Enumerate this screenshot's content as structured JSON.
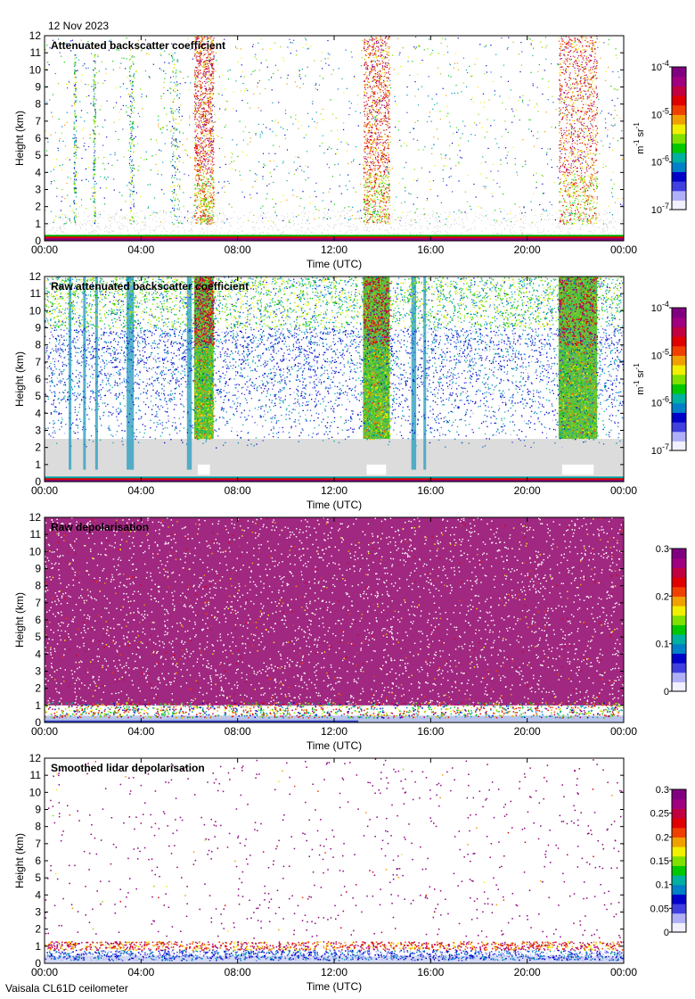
{
  "header": {
    "date": "12 Nov 2023",
    "instrument": "Vaisala CL61D ceilometer"
  },
  "colormap": [
    "#f0f0ff",
    "#b0b0f8",
    "#4040e0",
    "#0000c8",
    "#0080c8",
    "#00b0a0",
    "#00c800",
    "#80e000",
    "#f0f000",
    "#f0a000",
    "#f04000",
    "#e00000",
    "#c00040",
    "#a00080",
    "#800080"
  ],
  "chart_data": [
    {
      "type": "heatmap",
      "title": "Attenuated backscatter coefficient",
      "xlabel": "Time (UTC)",
      "ylabel": "Height (km)",
      "x_ticks": [
        "00:00",
        "04:00",
        "08:00",
        "12:00",
        "16:00",
        "20:00",
        "00:00"
      ],
      "y_ticks": [
        "0",
        "1",
        "2",
        "3",
        "4",
        "5",
        "6",
        "7",
        "8",
        "9",
        "10",
        "11",
        "12"
      ],
      "ylim": [
        0,
        12
      ],
      "xlim_hours": [
        0,
        24
      ],
      "colorbar": {
        "scale": "log",
        "range": [
          1e-07,
          0.0001
        ],
        "tick_labels": [
          {
            "base": "10",
            "exp": "-7"
          },
          {
            "base": "10",
            "exp": "-6"
          },
          {
            "base": "10",
            "exp": "-5"
          },
          {
            "base": "10",
            "exp": "-4"
          }
        ],
        "unit": {
          "m": "m",
          "m_exp": "-1",
          "sr": "sr",
          "sr_exp": "-1"
        }
      },
      "features": {
        "precipitation_shafts_hours": [
          [
            6.2,
            7.0
          ],
          [
            13.2,
            14.3
          ],
          [
            21.3,
            22.9
          ]
        ],
        "sparse_showers_hours": [
          [
            1.2,
            1.3
          ],
          [
            2.0,
            2.1
          ],
          [
            3.5,
            3.7
          ],
          [
            5.2,
            5.6
          ]
        ],
        "surface_layer_top_km": 0.35
      }
    },
    {
      "type": "heatmap",
      "title": "Raw attenuated backscatter coefficient",
      "xlabel": "Time (UTC)",
      "ylabel": "Height (km)",
      "x_ticks": [
        "00:00",
        "04:00",
        "08:00",
        "12:00",
        "16:00",
        "20:00",
        "00:00"
      ],
      "y_ticks": [
        "0",
        "1",
        "2",
        "3",
        "4",
        "5",
        "6",
        "7",
        "8",
        "9",
        "10",
        "11",
        "12"
      ],
      "ylim": [
        0,
        12
      ],
      "xlim_hours": [
        0,
        24
      ],
      "colorbar": {
        "scale": "log",
        "range": [
          1e-07,
          0.0001
        ],
        "tick_labels": [
          {
            "base": "10",
            "exp": "-7"
          },
          {
            "base": "10",
            "exp": "-6"
          },
          {
            "base": "10",
            "exp": "-5"
          },
          {
            "base": "10",
            "exp": "-4"
          }
        ],
        "unit": {
          "m": "m",
          "m_exp": "-1",
          "sr": "sr",
          "sr_exp": "-1"
        }
      },
      "features": {
        "precipitation_shafts_hours": [
          [
            6.2,
            7.0
          ],
          [
            13.2,
            14.3
          ],
          [
            21.3,
            22.9
          ]
        ],
        "sparse_showers_hours": [
          [
            1.0,
            1.1
          ],
          [
            1.6,
            1.7
          ],
          [
            2.1,
            2.2
          ],
          [
            3.4,
            3.7
          ],
          [
            5.9,
            6.1
          ],
          [
            15.2,
            15.4
          ],
          [
            15.7,
            15.8
          ]
        ],
        "noise_floor_km": 2.5
      }
    },
    {
      "type": "heatmap",
      "title": "Raw depolarisation",
      "xlabel": "Time (UTC)",
      "ylabel": "Height (km)",
      "x_ticks": [
        "00:00",
        "04:00",
        "08:00",
        "12:00",
        "16:00",
        "20:00",
        "00:00"
      ],
      "y_ticks": [
        "0",
        "1",
        "2",
        "3",
        "4",
        "5",
        "6",
        "7",
        "8",
        "9",
        "10",
        "11",
        "12"
      ],
      "ylim": [
        0,
        12
      ],
      "xlim_hours": [
        0,
        24
      ],
      "colorbar": {
        "scale": "linear",
        "range": [
          0,
          0.3
        ],
        "tick_labels": [
          "0",
          "0.1",
          "0.2",
          "0.3"
        ]
      },
      "features": {
        "noise_layer_above_km": 1.0
      }
    },
    {
      "type": "heatmap",
      "title": "Smoothed lidar depolarisation",
      "xlabel": "Time (UTC)",
      "ylabel": "Height (km)",
      "x_ticks": [
        "00:00",
        "04:00",
        "08:00",
        "12:00",
        "16:00",
        "20:00",
        "00:00"
      ],
      "y_ticks": [
        "0",
        "1",
        "2",
        "3",
        "4",
        "5",
        "6",
        "7",
        "8",
        "9",
        "10",
        "11",
        "12"
      ],
      "ylim": [
        0,
        12
      ],
      "xlim_hours": [
        0,
        24
      ],
      "colorbar": {
        "scale": "linear",
        "range": [
          0,
          0.3
        ],
        "tick_labels": [
          "0",
          "0.05",
          "0.1",
          "0.15",
          "0.2",
          "0.25",
          "0.3"
        ]
      },
      "features": {
        "boundary_layer_top_km": 1.2,
        "precipitation_gaps_hours": [
          [
            6.4,
            6.9
          ],
          [
            13.3,
            13.9
          ],
          [
            21.3,
            22.8
          ]
        ]
      }
    }
  ]
}
